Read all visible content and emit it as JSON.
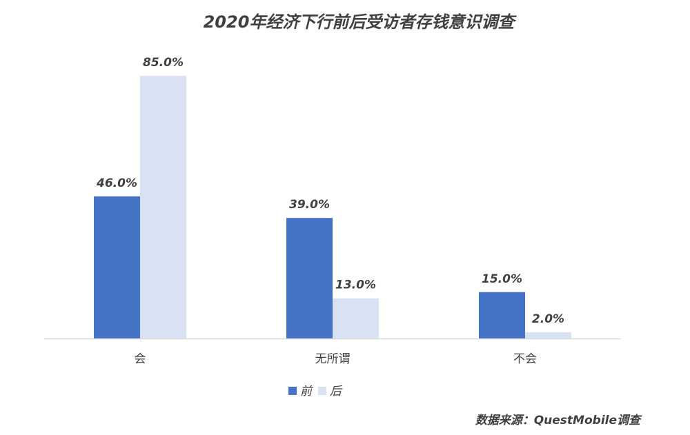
{
  "chart_data": {
    "type": "bar",
    "title": "2020年经济下行前后受访者存钱意识调查",
    "categories": [
      "会",
      "无所谓",
      "不会"
    ],
    "series": [
      {
        "name": "前",
        "values": [
          46.0,
          39.0,
          15.0
        ],
        "labels": [
          "46.0%",
          "39.0%",
          "15.0%"
        ],
        "color": "#4472C4"
      },
      {
        "name": "后",
        "values": [
          85.0,
          13.0,
          2.0
        ],
        "labels": [
          "85.0%",
          "13.0%",
          "2.0%"
        ],
        "color": "#D9E2F3"
      }
    ],
    "unit": "%",
    "ylim": [
      0,
      85
    ],
    "grid": false,
    "legend_position": "bottom-center",
    "source": "数据来源：QuestMobile调查"
  },
  "colors": {
    "axis": "#D9D9D9",
    "text": "#404040"
  }
}
